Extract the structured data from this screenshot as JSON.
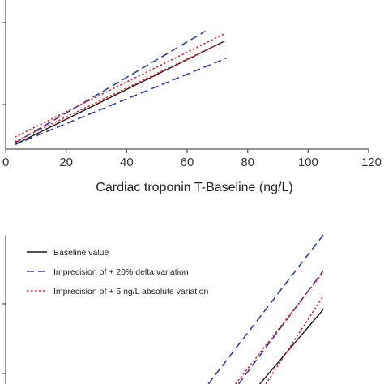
{
  "chart_data": [
    {
      "type": "line",
      "xlabel": "Cardiac troponin T-Baseline (ng/L)",
      "x_ticks": [
        "0",
        "20",
        "40",
        "60",
        "80",
        "100",
        "120"
      ],
      "xlim": [
        0,
        120
      ],
      "ylim": [
        0,
        100
      ],
      "series": [
        {
          "name": "Baseline value",
          "color": "#1a1a1a",
          "style": "solid",
          "x": [
            3,
            72
          ],
          "y": [
            3,
            72
          ]
        },
        {
          "name": "Imprecision of + 20% delta variation",
          "color": "#2e3fa0",
          "style": "dashed",
          "x": [
            3,
            66
          ],
          "y": [
            4,
            79
          ]
        },
        {
          "name": "Imprecision of + 20% delta variation",
          "color": "#2e3fa0",
          "style": "dashed",
          "x": [
            3,
            73
          ],
          "y": [
            3,
            61
          ]
        },
        {
          "name": "Imprecision of + 5 ng/L absolute variation",
          "color": "#d8262f",
          "style": "dotted",
          "x": [
            3,
            72
          ],
          "y": [
            8,
            77
          ]
        },
        {
          "name": "Imprecision of + 5 ng/L absolute variation",
          "color": "#d8262f",
          "style": "dotted",
          "x": [
            3,
            73
          ],
          "y": [
            5,
            73
          ]
        }
      ]
    },
    {
      "type": "line",
      "legend_position": "top-left",
      "xlim": [
        0,
        120
      ],
      "ylim": [
        0,
        100
      ],
      "legend": [
        {
          "label": "Baseline value",
          "color": "#1a1a1a",
          "style": "solid"
        },
        {
          "label": "Imprecision of + 20% delta variation",
          "color": "#2e3fa0",
          "style": "dashed"
        },
        {
          "label": "Imprecision of + 5 ng/L absolute variation",
          "color": "#d8262f",
          "style": "dotted"
        }
      ],
      "series": [
        {
          "name": "Baseline value",
          "color": "#1a1a1a",
          "style": "solid",
          "x": [
            84,
            105
          ],
          "y": [
            0,
            50
          ]
        },
        {
          "name": "Imprecision of + 20% delta variation",
          "color": "#2e3fa0",
          "style": "dashed",
          "x": [
            67,
            105
          ],
          "y": [
            0,
            100
          ]
        },
        {
          "name": "Imprecision of + 20% delta variation",
          "color": "#2e3fa0",
          "style": "dashed",
          "x": [
            77,
            105
          ],
          "y": [
            0,
            76
          ]
        },
        {
          "name": "Imprecision of + 5 ng/L absolute variation",
          "color": "#d8262f",
          "style": "dotted",
          "x": [
            76,
            105
          ],
          "y": [
            0,
            75
          ]
        },
        {
          "name": "Imprecision of + 5 ng/L absolute variation",
          "color": "#d8262f",
          "style": "dotted",
          "x": [
            86,
            105
          ],
          "y": [
            0,
            59
          ]
        }
      ]
    }
  ]
}
